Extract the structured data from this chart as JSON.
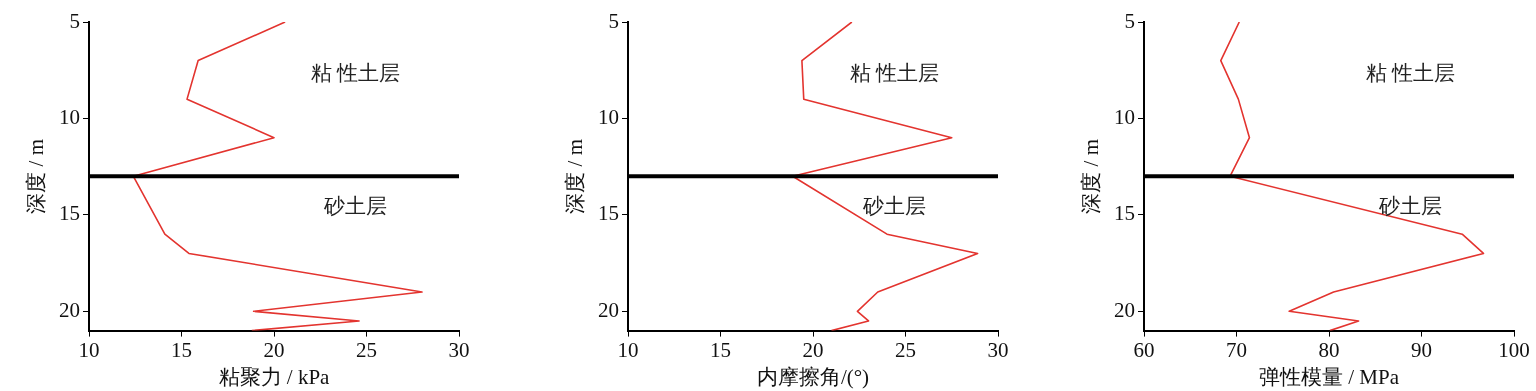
{
  "chart_data": [
    {
      "type": "line",
      "xlabel": "粘聚力 / kPa",
      "ylabel": "深度 / m",
      "xlim": [
        10,
        30
      ],
      "xticks": [
        10,
        15,
        20,
        25,
        30
      ],
      "ylim": [
        21,
        5
      ],
      "yticks": [
        5,
        10,
        15,
        20
      ],
      "grid": false,
      "series": [
        {
          "color": "#e3342f",
          "x": [
            20.6,
            15.9,
            15.3,
            20.0,
            12.4,
            14.1,
            15.4,
            28.0,
            18.9,
            24.6,
            18.8
          ],
          "values": [
            5,
            7,
            9,
            11,
            13,
            16,
            17,
            19,
            20,
            20.5,
            21
          ]
        }
      ],
      "ref_lines": [
        {
          "axis": "y",
          "value": 13,
          "color": "#000000"
        }
      ],
      "annotations": [
        "粘 性土层",
        "砂土层"
      ]
    },
    {
      "type": "line",
      "xlabel": "内摩擦角/(°)",
      "ylabel": "深度 / m",
      "xlim": [
        10,
        30
      ],
      "xticks": [
        10,
        15,
        20,
        25,
        30
      ],
      "ylim": [
        21,
        5
      ],
      "yticks": [
        5,
        10,
        15,
        20
      ],
      "grid": false,
      "series": [
        {
          "color": "#e3342f",
          "x": [
            22.1,
            19.4,
            19.5,
            27.5,
            18.9,
            24.0,
            28.9,
            23.5,
            22.4,
            23.0,
            21.0
          ],
          "values": [
            5,
            7,
            9,
            11,
            13,
            16,
            17,
            19,
            20,
            20.5,
            21
          ]
        }
      ],
      "ref_lines": [
        {
          "axis": "y",
          "value": 13,
          "color": "#000000"
        }
      ],
      "annotations": [
        "粘 性土层",
        "砂土层"
      ]
    },
    {
      "type": "line",
      "xlabel": "弹性模量 / MPa",
      "ylabel": "深度 / m",
      "xlim": [
        60,
        100
      ],
      "xticks": [
        60,
        70,
        80,
        90,
        100
      ],
      "ylim": [
        21,
        5
      ],
      "yticks": [
        5,
        10,
        15,
        20
      ],
      "grid": false,
      "series": [
        {
          "color": "#e3342f",
          "x": [
            70.3,
            68.3,
            70.2,
            71.4,
            69.3,
            94.4,
            96.7,
            80.5,
            75.7,
            83.2,
            80.1
          ],
          "values": [
            5,
            7,
            9,
            11,
            13,
            16,
            17,
            19,
            20,
            20.5,
            21
          ]
        }
      ],
      "ref_lines": [
        {
          "axis": "y",
          "value": 13,
          "color": "#000000"
        }
      ],
      "annotations": [
        "粘 性土层",
        "砂土层"
      ]
    }
  ]
}
